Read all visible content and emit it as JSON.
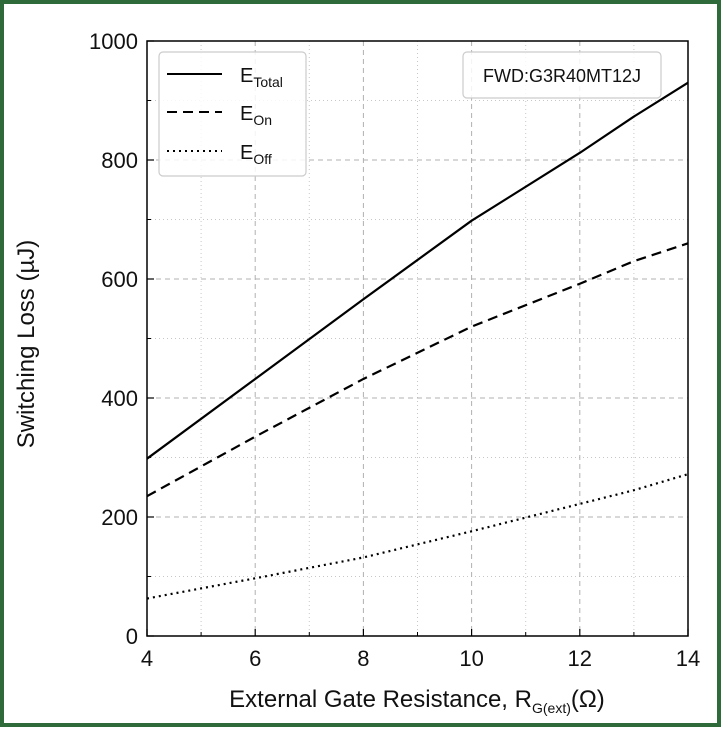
{
  "chart_data": {
    "type": "line",
    "xlabel_main": "External Gate Resistance, R",
    "xlabel_sub": "G(ext)",
    "xlabel_unit": "(Ω)",
    "ylabel": "Switching Loss (µJ)",
    "xlim": [
      4,
      14
    ],
    "ylim": [
      0,
      1000
    ],
    "x_ticks": [
      "4",
      "6",
      "8",
      "10",
      "12",
      "14"
    ],
    "y_ticks": [
      "0",
      "200",
      "400",
      "600",
      "800",
      "1000"
    ],
    "grid": "major dashed, minor dotted",
    "legend_placement": "top-left",
    "annotation": "FWD:G3R40MT12J",
    "series": [
      {
        "name_main": "E",
        "name_sub": "Total",
        "style": "solid",
        "x": [
          4,
          6,
          8,
          10,
          12,
          13,
          14
        ],
        "y": [
          298,
          432,
          566,
          698,
          812,
          873,
          930
        ]
      },
      {
        "name_main": "E",
        "name_sub": "On",
        "style": "dashed",
        "x": [
          4,
          6,
          8,
          10,
          12,
          13,
          14
        ],
        "y": [
          235,
          335,
          432,
          520,
          592,
          630,
          660
        ]
      },
      {
        "name_main": "E",
        "name_sub": "Off",
        "style": "dotted",
        "x": [
          4,
          6,
          8,
          10,
          12,
          13,
          14
        ],
        "y": [
          63,
          97,
          132,
          176,
          222,
          245,
          272
        ]
      }
    ]
  }
}
